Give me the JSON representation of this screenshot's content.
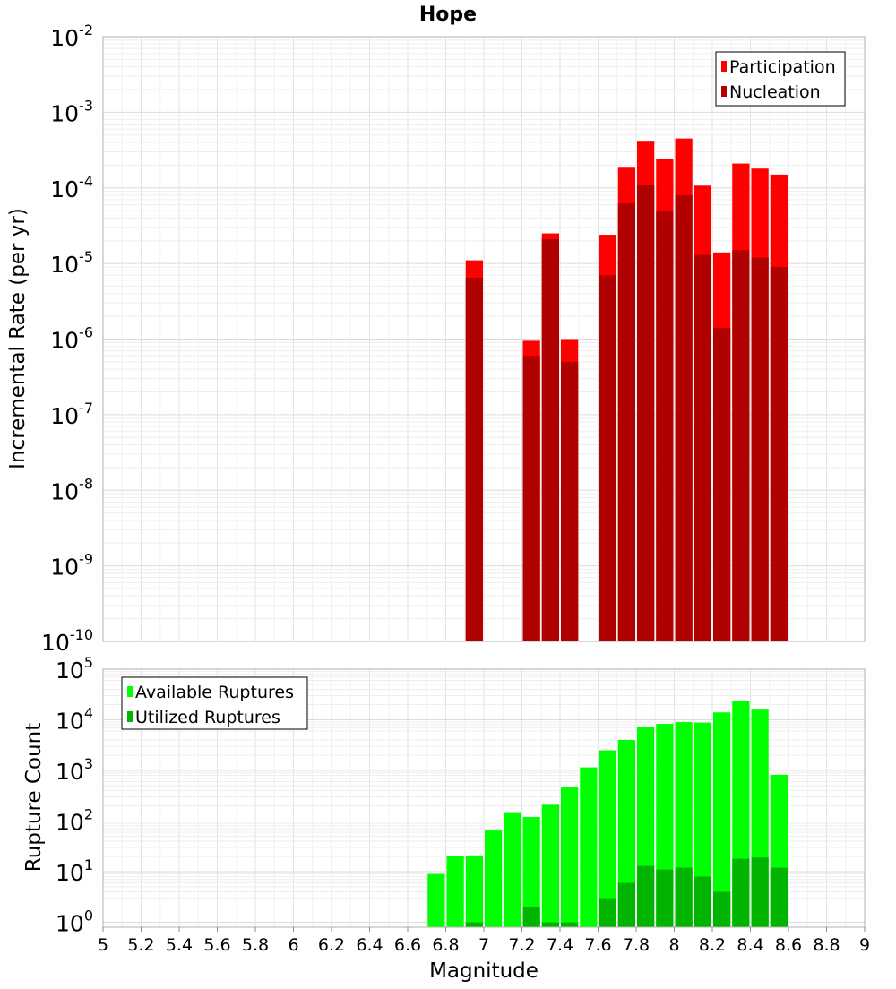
{
  "chart_data": [
    {
      "type": "bar",
      "title": "Hope",
      "xlabel": "",
      "ylabel": "Incremental Rate (per yr)",
      "yscale": "log",
      "ylim": [
        1e-10,
        0.01
      ],
      "xlim": [
        5,
        9
      ],
      "grid": true,
      "legend_position": "top-right",
      "x": [
        6.95,
        7.25,
        7.35,
        7.45,
        7.65,
        7.75,
        7.85,
        7.95,
        8.05,
        8.15,
        8.25,
        8.35,
        8.45,
        8.55
      ],
      "series": [
        {
          "name": "Participation",
          "color": "#ff0000",
          "values": [
            1.1e-05,
            9.5e-07,
            2.5e-05,
            1e-06,
            2.4e-05,
            0.00019,
            0.00042,
            0.00024,
            0.00045,
            0.000107,
            1.4e-05,
            0.00021,
            0.00018,
            0.00015
          ]
        },
        {
          "name": "Nucleation",
          "color": "#b00000",
          "values": [
            6.5e-06,
            6e-07,
            2.1e-05,
            5e-07,
            7e-06,
            6.2e-05,
            0.00011,
            5e-05,
            8e-05,
            1.3e-05,
            1.4e-06,
            1.5e-05,
            1.2e-05,
            9e-06
          ]
        }
      ]
    },
    {
      "type": "bar",
      "title": "",
      "xlabel": "Magnitude",
      "ylabel": "Rupture Count",
      "yscale": "log",
      "ylim": [
        0.8,
        100000.0
      ],
      "xlim": [
        5,
        9
      ],
      "grid": true,
      "legend_position": "top-left",
      "x": [
        6.75,
        6.85,
        6.95,
        7.05,
        7.15,
        7.25,
        7.35,
        7.45,
        7.55,
        7.65,
        7.75,
        7.85,
        7.95,
        8.05,
        8.15,
        8.25,
        8.35,
        8.45,
        8.55
      ],
      "series": [
        {
          "name": "Available Ruptures",
          "color": "#00ff00",
          "values": [
            9,
            20,
            21,
            65,
            150,
            120,
            210,
            460,
            1150,
            2500,
            4000,
            7200,
            8300,
            9000,
            8800,
            14000,
            24000,
            16500,
            820
          ]
        },
        {
          "name": "Utilized Ruptures",
          "color": "#00b400",
          "values": [
            0,
            0,
            1,
            0,
            0,
            2,
            1,
            1,
            0,
            3,
            6,
            13,
            11,
            12,
            8,
            4,
            18,
            19,
            12
          ]
        }
      ]
    }
  ],
  "x_ticks": [
    "5",
    "5.2",
    "5.4",
    "5.6",
    "5.8",
    "6",
    "6.2",
    "6.4",
    "6.6",
    "6.8",
    "7",
    "7.2",
    "7.4",
    "7.6",
    "7.8",
    "8",
    "8.2",
    "8.4",
    "8.6",
    "8.8",
    "9"
  ],
  "top_y_exponents": [
    "-2",
    "-3",
    "-4",
    "-5",
    "-6",
    "-7",
    "-8",
    "-9",
    "-10"
  ],
  "bottom_y_exponents": [
    "5",
    "4",
    "3",
    "2",
    "1",
    "0"
  ]
}
